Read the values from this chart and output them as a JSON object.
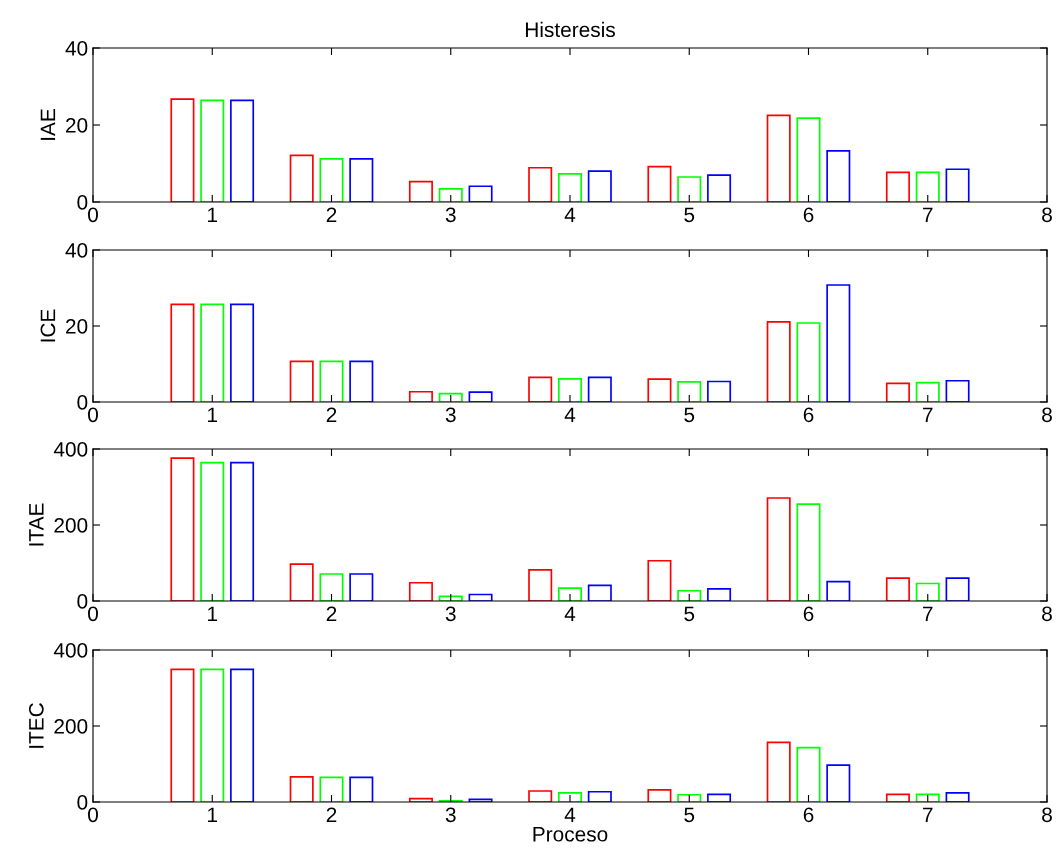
{
  "chart_data": [
    {
      "type": "bar",
      "title": "Histeresis",
      "ylabel": "IAE",
      "x": [
        1,
        2,
        3,
        4,
        5,
        6,
        7
      ],
      "xlim": [
        0,
        8
      ],
      "xticks": [
        0,
        1,
        2,
        3,
        4,
        5,
        6,
        7,
        8
      ],
      "ylim": [
        0,
        40
      ],
      "yticks": [
        0,
        20,
        40
      ],
      "grid": false,
      "legend": false,
      "series": [
        {
          "color": "#ff0000",
          "values": [
            26.7,
            12.1,
            5.3,
            8.9,
            9.2,
            22.5,
            7.7
          ]
        },
        {
          "color": "#00ff00",
          "values": [
            26.4,
            11.2,
            3.4,
            7.3,
            6.5,
            21.8,
            7.7
          ]
        },
        {
          "color": "#0000ff",
          "values": [
            26.4,
            11.2,
            4.1,
            8.0,
            7.0,
            13.3,
            8.5
          ]
        }
      ]
    },
    {
      "type": "bar",
      "ylabel": "ICE",
      "x": [
        1,
        2,
        3,
        4,
        5,
        6,
        7
      ],
      "xlim": [
        0,
        8
      ],
      "xticks": [
        0,
        1,
        2,
        3,
        4,
        5,
        6,
        7,
        8
      ],
      "ylim": [
        0,
        40
      ],
      "yticks": [
        0,
        20,
        40
      ],
      "grid": false,
      "legend": false,
      "series": [
        {
          "color": "#ff0000",
          "values": [
            25.7,
            10.7,
            2.7,
            6.5,
            6.0,
            21.1,
            4.9
          ]
        },
        {
          "color": "#00ff00",
          "values": [
            25.7,
            10.7,
            2.2,
            6.1,
            5.3,
            20.8,
            5.1
          ]
        },
        {
          "color": "#0000ff",
          "values": [
            25.7,
            10.7,
            2.6,
            6.5,
            5.4,
            30.8,
            5.6
          ]
        }
      ]
    },
    {
      "type": "bar",
      "ylabel": "ITAE",
      "x": [
        1,
        2,
        3,
        4,
        5,
        6,
        7
      ],
      "xlim": [
        0,
        8
      ],
      "xticks": [
        0,
        1,
        2,
        3,
        4,
        5,
        6,
        7,
        8
      ],
      "ylim": [
        0,
        400
      ],
      "yticks": [
        0,
        200,
        400
      ],
      "grid": false,
      "legend": false,
      "series": [
        {
          "color": "#ff0000",
          "values": [
            376,
            97,
            48,
            82,
            106,
            271,
            60
          ]
        },
        {
          "color": "#00ff00",
          "values": [
            364,
            71,
            12,
            34,
            27,
            255,
            46
          ]
        },
        {
          "color": "#0000ff",
          "values": [
            364,
            71,
            17,
            41,
            32,
            51,
            60
          ]
        }
      ]
    },
    {
      "type": "bar",
      "ylabel": "ITEC",
      "xlabel": "Proceso",
      "x": [
        1,
        2,
        3,
        4,
        5,
        6,
        7
      ],
      "xlim": [
        0,
        8
      ],
      "xticks": [
        0,
        1,
        2,
        3,
        4,
        5,
        6,
        7,
        8
      ],
      "ylim": [
        0,
        400
      ],
      "yticks": [
        0,
        200,
        400
      ],
      "grid": false,
      "legend": false,
      "series": [
        {
          "color": "#ff0000",
          "values": [
            349,
            66,
            9,
            29,
            32,
            157,
            20
          ]
        },
        {
          "color": "#00ff00",
          "values": [
            349,
            65,
            3,
            24,
            19,
            143,
            20
          ]
        },
        {
          "color": "#0000ff",
          "values": [
            349,
            65,
            7,
            27,
            20,
            97,
            24
          ]
        }
      ]
    }
  ]
}
